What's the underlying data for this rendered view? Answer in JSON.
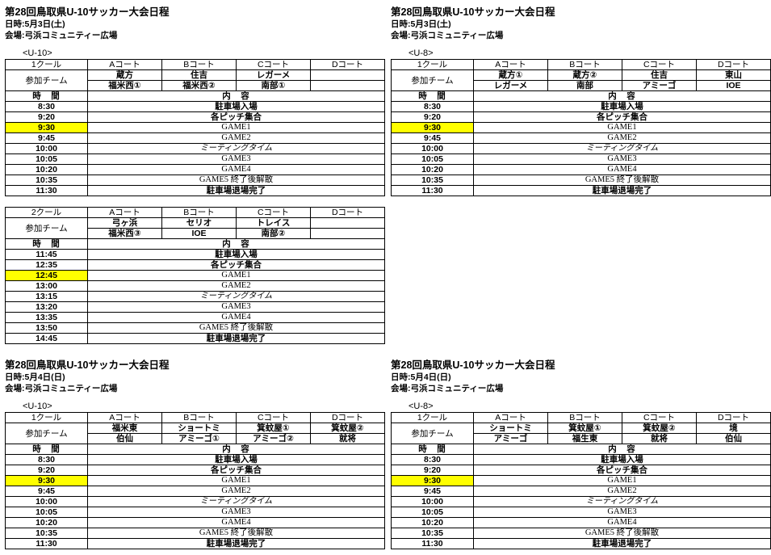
{
  "highlight_color": "#ffff00",
  "blocks": [
    {
      "title": "第28回鳥取県U-10サッカー大会日程",
      "date": "日時:5月3日(土)",
      "venue": "会場:弓浜コミュニティー広場",
      "category": "<U-10>",
      "tables": [
        {
          "round": "1クール",
          "courts": [
            "Aコート",
            "Bコート",
            "Cコート",
            "Dコート"
          ],
          "teams_label": "参加チーム",
          "teams_row1": [
            "蔵方",
            "住吉",
            "レガーメ",
            ""
          ],
          "teams_row2": [
            "福米西①",
            "福米西②",
            "南部①",
            ""
          ],
          "time_label": "時　間",
          "content_label": "内　容",
          "schedule": [
            {
              "time": "8:30",
              "content": "駐車場入場",
              "hl": false
            },
            {
              "time": "9:20",
              "content": "各ピッチ集合",
              "hl": false
            },
            {
              "time": "9:30",
              "content": "GAME1",
              "hl": true
            },
            {
              "time": "9:45",
              "content": "GAME2",
              "hl": false
            },
            {
              "time": "10:00",
              "content": "ミーティングタイム",
              "hl": false
            },
            {
              "time": "10:05",
              "content": "GAME3",
              "hl": false
            },
            {
              "time": "10:20",
              "content": "GAME4",
              "hl": false
            },
            {
              "time": "10:35",
              "content": "GAME5 終了後解散",
              "hl": false
            },
            {
              "time": "11:30",
              "content": "駐車場退場完了",
              "hl": false
            }
          ]
        },
        {
          "round": "2クール",
          "courts": [
            "Aコート",
            "Bコート",
            "Cコート",
            "Dコート"
          ],
          "teams_label": "参加チーム",
          "teams_row1": [
            "弓ヶ浜",
            "セリオ",
            "トレイス",
            ""
          ],
          "teams_row2": [
            "福米西③",
            "IOE",
            "南部②",
            ""
          ],
          "time_label": "時　間",
          "content_label": "内　容",
          "schedule": [
            {
              "time": "11:45",
              "content": "駐車場入場",
              "hl": false
            },
            {
              "time": "12:35",
              "content": "各ピッチ集合",
              "hl": false
            },
            {
              "time": "12:45",
              "content": "GAME1",
              "hl": true
            },
            {
              "time": "13:00",
              "content": "GAME2",
              "hl": false
            },
            {
              "time": "13:15",
              "content": "ミーティングタイム",
              "hl": false
            },
            {
              "time": "13:20",
              "content": "GAME3",
              "hl": false
            },
            {
              "time": "13:35",
              "content": "GAME4",
              "hl": false
            },
            {
              "time": "13:50",
              "content": "GAME5 終了後解散",
              "hl": false
            },
            {
              "time": "14:45",
              "content": "駐車場退場完了",
              "hl": false
            }
          ]
        }
      ]
    },
    {
      "title": "第28回鳥取県U-10サッカー大会日程",
      "date": "日時:5月3日(土)",
      "venue": "会場:弓浜コミュニティー広場",
      "category": "<U-8>",
      "tables": [
        {
          "round": "1クール",
          "courts": [
            "Aコート",
            "Bコート",
            "Cコート",
            "Dコート"
          ],
          "teams_label": "参加チーム",
          "teams_row1": [
            "蔵方①",
            "蔵方②",
            "住吉",
            "東山"
          ],
          "teams_row2": [
            "レガーメ",
            "南部",
            "アミーゴ",
            "IOE"
          ],
          "time_label": "時　間",
          "content_label": "内　容",
          "schedule": [
            {
              "time": "8:30",
              "content": "駐車場入場",
              "hl": false
            },
            {
              "time": "9:20",
              "content": "各ピッチ集合",
              "hl": false
            },
            {
              "time": "9:30",
              "content": "GAME1",
              "hl": true
            },
            {
              "time": "9:45",
              "content": "GAME2",
              "hl": false
            },
            {
              "time": "10:00",
              "content": "ミーティングタイム",
              "hl": false
            },
            {
              "time": "10:05",
              "content": "GAME3",
              "hl": false
            },
            {
              "time": "10:20",
              "content": "GAME4",
              "hl": false
            },
            {
              "time": "10:35",
              "content": "GAME5 終了後解散",
              "hl": false
            },
            {
              "time": "11:30",
              "content": "駐車場退場完了",
              "hl": false
            }
          ]
        }
      ]
    },
    {
      "title": "第28回鳥取県U-10サッカー大会日程",
      "date": "日時:5月4日(日)",
      "venue": "会場:弓浜コミュニティー広場",
      "category": "<U-10>",
      "tables": [
        {
          "round": "1クール",
          "courts": [
            "Aコート",
            "Bコート",
            "Cコート",
            "Dコート"
          ],
          "teams_label": "参加チーム",
          "teams_row1": [
            "福米東",
            "ショートミ",
            "箕蚊屋①",
            "箕蚊屋②"
          ],
          "teams_row2": [
            "伯仙",
            "アミーゴ①",
            "アミーゴ②",
            "就将"
          ],
          "time_label": "時　間",
          "content_label": "内　容",
          "schedule": [
            {
              "time": "8:30",
              "content": "駐車場入場",
              "hl": false
            },
            {
              "time": "9:20",
              "content": "各ピッチ集合",
              "hl": false
            },
            {
              "time": "9:30",
              "content": "GAME1",
              "hl": true
            },
            {
              "time": "9:45",
              "content": "GAME2",
              "hl": false
            },
            {
              "time": "10:00",
              "content": "ミーティングタイム",
              "hl": false
            },
            {
              "time": "10:05",
              "content": "GAME3",
              "hl": false
            },
            {
              "time": "10:20",
              "content": "GAME4",
              "hl": false
            },
            {
              "time": "10:35",
              "content": "GAME5 終了後解散",
              "hl": false
            },
            {
              "time": "11:30",
              "content": "駐車場退場完了",
              "hl": false
            }
          ]
        }
      ]
    },
    {
      "title": "第28回鳥取県U-10サッカー大会日程",
      "date": "日時:5月4日(日)",
      "venue": "会場:弓浜コミュニティー広場",
      "category": "<U-8>",
      "tables": [
        {
          "round": "1クール",
          "courts": [
            "Aコート",
            "Bコート",
            "Cコート",
            "Dコート"
          ],
          "teams_label": "参加チーム",
          "teams_row1": [
            "ショートミ",
            "箕蚊屋①",
            "箕蚊屋②",
            "境"
          ],
          "teams_row2": [
            "アミーゴ",
            "福生東",
            "就将",
            "伯仙"
          ],
          "time_label": "時　間",
          "content_label": "内　容",
          "schedule": [
            {
              "time": "8:30",
              "content": "駐車場入場",
              "hl": false
            },
            {
              "time": "9:20",
              "content": "各ピッチ集合",
              "hl": false
            },
            {
              "time": "9:30",
              "content": "GAME1",
              "hl": true
            },
            {
              "time": "9:45",
              "content": "GAME2",
              "hl": false
            },
            {
              "time": "10:00",
              "content": "ミーティングタイム",
              "hl": false
            },
            {
              "time": "10:05",
              "content": "GAME3",
              "hl": false
            },
            {
              "time": "10:20",
              "content": "GAME4",
              "hl": false
            },
            {
              "time": "10:35",
              "content": "GAME5 終了後解散",
              "hl": false
            },
            {
              "time": "11:30",
              "content": "駐車場退場完了",
              "hl": false
            }
          ]
        }
      ]
    }
  ]
}
